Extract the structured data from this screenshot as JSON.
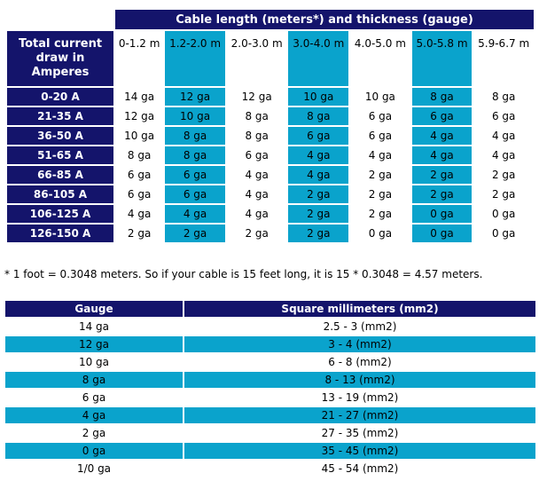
{
  "cable_table": {
    "title": "Cable length (meters*) and thickness (gauge)",
    "row_header": "Total current draw in Amperes",
    "ranges": [
      {
        "label": "0-1.2 m",
        "highlight": false
      },
      {
        "label": "1.2-2.0 m",
        "highlight": true
      },
      {
        "label": "2.0-3.0 m",
        "highlight": false
      },
      {
        "label": "3.0-4.0 m",
        "highlight": true
      },
      {
        "label": "4.0-5.0 m",
        "highlight": false
      },
      {
        "label": "5.0-5.8 m",
        "highlight": true
      },
      {
        "label": "5.9-6.7 m",
        "highlight": false
      }
    ],
    "rows": [
      {
        "amps": "0-20 A",
        "values": [
          "14 ga",
          "12 ga",
          "12 ga",
          "10 ga",
          "10 ga",
          "8 ga",
          "8 ga"
        ]
      },
      {
        "amps": "21-35 A",
        "values": [
          "12 ga",
          "10 ga",
          "8 ga",
          "8 ga",
          "6 ga",
          "6 ga",
          "6 ga"
        ]
      },
      {
        "amps": "36-50 A",
        "values": [
          "10 ga",
          "8 ga",
          "8 ga",
          "6 ga",
          "6 ga",
          "4 ga",
          "4 ga"
        ]
      },
      {
        "amps": "51-65 A",
        "values": [
          "8 ga",
          "8 ga",
          "6 ga",
          "4 ga",
          "4 ga",
          "4 ga",
          "4 ga"
        ]
      },
      {
        "amps": "66-85 A",
        "values": [
          "6 ga",
          "6 ga",
          "4 ga",
          "4 ga",
          "2 ga",
          "2 ga",
          "2 ga"
        ]
      },
      {
        "amps": "86-105 A",
        "values": [
          "6 ga",
          "6 ga",
          "4 ga",
          "2 ga",
          "2 ga",
          "2 ga",
          "2 ga"
        ]
      },
      {
        "amps": "106-125 A",
        "values": [
          "4 ga",
          "4 ga",
          "4 ga",
          "2 ga",
          "2 ga",
          "0 ga",
          "0 ga"
        ]
      },
      {
        "amps": "126-150 A",
        "values": [
          "2 ga",
          "2 ga",
          "2 ga",
          "2 ga",
          "0 ga",
          "0 ga",
          "0 ga"
        ]
      }
    ]
  },
  "footnote": "* 1 foot = 0.3048 meters. So if your cable is 15 feet long, it is 15 * 0.3048 = 4.57 meters.",
  "gauge_table": {
    "headers": [
      "Gauge",
      "Square millimeters (mm2)"
    ],
    "rows": [
      {
        "gauge": "14 ga",
        "mm2": "2.5 - 3 (mm2)",
        "highlight": false
      },
      {
        "gauge": "12 ga",
        "mm2": "3 - 4 (mm2)",
        "highlight": true
      },
      {
        "gauge": "10 ga",
        "mm2": "6 - 8 (mm2)",
        "highlight": false
      },
      {
        "gauge": "8 ga",
        "mm2": "8 - 13 (mm2)",
        "highlight": true
      },
      {
        "gauge": "6 ga",
        "mm2": "13 - 19 (mm2)",
        "highlight": false
      },
      {
        "gauge": "4 ga",
        "mm2": "21 - 27 (mm2)",
        "highlight": true
      },
      {
        "gauge": "2 ga",
        "mm2": "27 - 35 (mm2)",
        "highlight": false
      },
      {
        "gauge": "0 ga",
        "mm2": "35 - 45 (mm2)",
        "highlight": true
      },
      {
        "gauge": "1/0 ga",
        "mm2": "45 - 54 (mm2)",
        "highlight": false
      }
    ]
  },
  "colors": {
    "header_navy": "#14146b",
    "highlight_teal": "#0aa3cc",
    "background": "#ffffff"
  }
}
